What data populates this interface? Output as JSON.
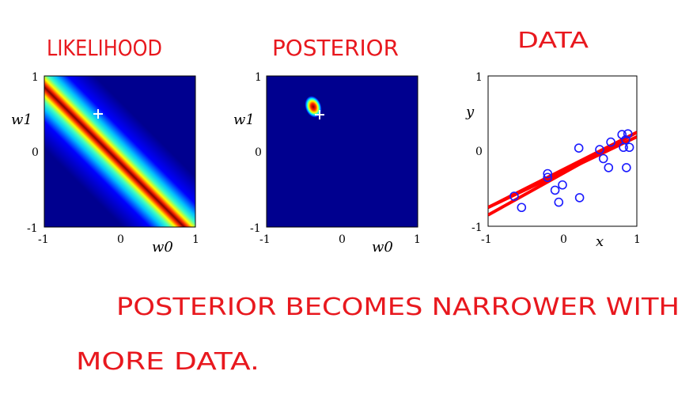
{
  "titles": {
    "likelihood": "LIKELIHOOD",
    "posterior": "POSTERIOR",
    "data": "DATA"
  },
  "panels": {
    "likelihood": {
      "y_label": "w1",
      "x_label": "w0",
      "x_ticks": [
        "-1",
        "0",
        "1"
      ],
      "y_ticks": [
        "1",
        "0",
        "-1"
      ]
    },
    "posterior": {
      "y_label": "w1",
      "x_label": "w0",
      "x_ticks": [
        "-1",
        "0",
        "1"
      ],
      "y_ticks": [
        "1",
        "0",
        "-1"
      ]
    },
    "data": {
      "y_label": "y",
      "x_label": "x",
      "x_ticks": [
        "-1",
        "0",
        "1"
      ],
      "y_ticks": [
        "1",
        "0",
        "-1"
      ]
    }
  },
  "caption": {
    "line1": "POSTERIOR BECOMES NARROWER WITH",
    "line2": "MORE DATA."
  },
  "colors": {
    "colormap_bg": "#00008f",
    "ridge_dark": "#7f0000",
    "ridge_red": "#ff0000",
    "handwriting": "#e8181e",
    "data_point": "#1a1aff",
    "sample_line": "#ff0000"
  },
  "chart_data": [
    {
      "type": "heatmap",
      "title": "LIKELIHOOD",
      "xlabel": "w0",
      "ylabel": "w1",
      "xlim": [
        -1,
        1
      ],
      "ylim": [
        -1,
        1
      ],
      "ridge": {
        "intercept": -0.2,
        "slope": -1.0
      },
      "true_w": [
        -0.3,
        0.5
      ]
    },
    {
      "type": "heatmap",
      "title": "POSTERIOR",
      "xlabel": "w0",
      "ylabel": "w1",
      "xlim": [
        -1,
        1
      ],
      "ylim": [
        -1,
        1
      ],
      "peak": [
        -0.38,
        0.6
      ],
      "true_w": [
        -0.3,
        0.5
      ]
    },
    {
      "type": "scatter",
      "title": "DATA",
      "xlabel": "x",
      "ylabel": "y",
      "xlim": [
        -1,
        1
      ],
      "ylim": [
        -1,
        1
      ],
      "points": [
        [
          -0.65,
          -0.6
        ],
        [
          -0.55,
          -0.75
        ],
        [
          -0.2,
          -0.3
        ],
        [
          -0.2,
          -0.35
        ],
        [
          -0.1,
          -0.52
        ],
        [
          -0.05,
          -0.68
        ],
        [
          0.0,
          -0.45
        ],
        [
          0.22,
          0.04
        ],
        [
          0.23,
          -0.62
        ],
        [
          0.5,
          0.02
        ],
        [
          0.55,
          -0.1
        ],
        [
          0.62,
          -0.22
        ],
        [
          0.65,
          0.12
        ],
        [
          0.8,
          0.22
        ],
        [
          0.82,
          0.05
        ],
        [
          0.85,
          0.15
        ],
        [
          0.88,
          0.23
        ],
        [
          0.86,
          -0.22
        ],
        [
          0.9,
          0.05
        ]
      ],
      "sample_lines": [
        {
          "intercept": -0.3,
          "slope": 0.55
        },
        {
          "intercept": -0.28,
          "slope": 0.47
        },
        {
          "intercept": -0.25,
          "slope": 0.5
        }
      ]
    }
  ]
}
